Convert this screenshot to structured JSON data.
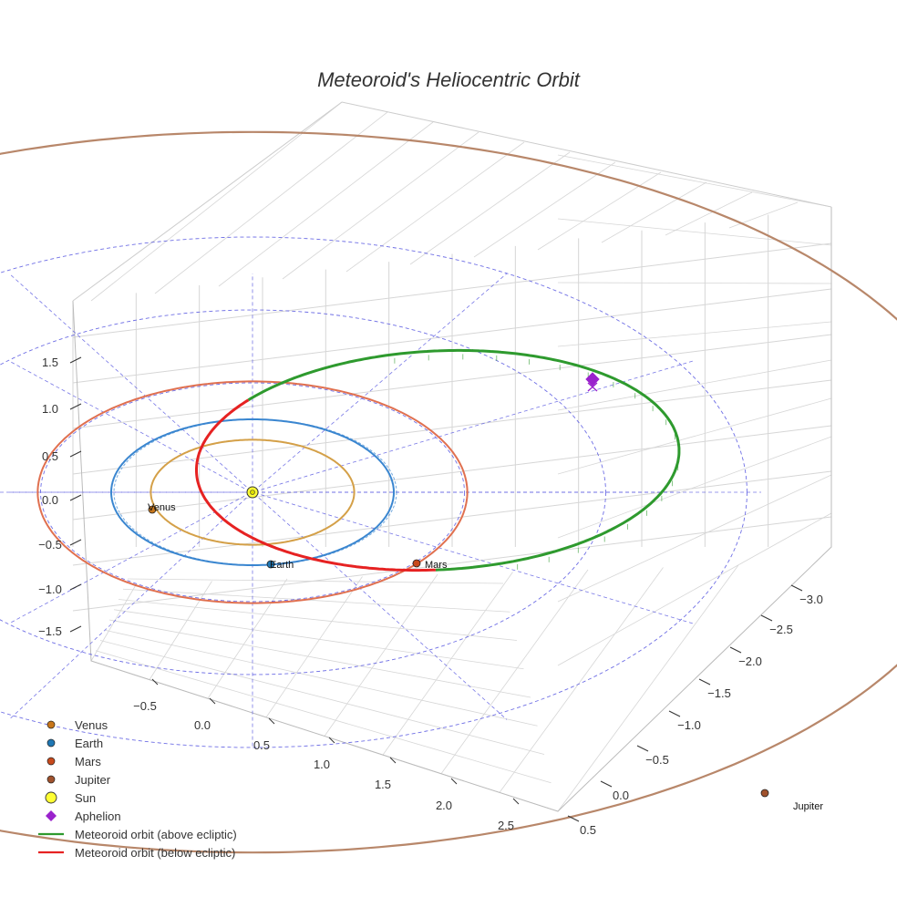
{
  "chart_data": {
    "type": "line",
    "title": "Meteoroid's Heliocentric Orbit",
    "axes": {
      "z_ticks": [
        "−1.5",
        "−1.0",
        "−0.5",
        "0.0",
        "0.5",
        "1.0",
        "1.5"
      ],
      "x_ticks": [
        "−0.5",
        "0.0",
        "0.5",
        "1.0",
        "1.5",
        "2.0",
        "2.5"
      ],
      "y_ticks": [
        "−3.0",
        "−2.5",
        "−2.0",
        "−1.5",
        "−1.0",
        "−0.5",
        "0.0",
        "0.5"
      ],
      "grid": true,
      "ecliptic_reference_rings_au": [
        1.5,
        2.5,
        3.5
      ]
    },
    "planets": [
      {
        "name": "Venus",
        "orbit_radius_au": 0.72,
        "color": "#d4a048",
        "marker_color": "#c8761b",
        "label": "Venus"
      },
      {
        "name": "Earth",
        "orbit_radius_au": 1.0,
        "color": "#3a86d0",
        "marker_color": "#1f77b4",
        "label": "Earth"
      },
      {
        "name": "Mars",
        "orbit_radius_au": 1.52,
        "color": "#e07050",
        "marker_color": "#c84a1c",
        "label": "Mars"
      },
      {
        "name": "Jupiter",
        "orbit_radius_au": 5.2,
        "color": "#b8876a",
        "marker_color": "#a0522d",
        "label": "Jupiter"
      }
    ],
    "sun": {
      "name": "Sun",
      "color": "#ffff33"
    },
    "meteoroid_orbit": {
      "perihelion_au": 0.72,
      "aphelion_au": 2.9,
      "above_ecliptic_color": "#2e9a2e",
      "below_ecliptic_color": "#e62222"
    },
    "aphelion": {
      "name": "Aphelion",
      "color": "#9a22cc"
    },
    "legend": {
      "position": "bottom-left",
      "entries": [
        {
          "label": "Venus",
          "kind": "dot",
          "color": "#c8761b"
        },
        {
          "label": "Earth",
          "kind": "dot",
          "color": "#1f77b4"
        },
        {
          "label": "Mars",
          "kind": "dot",
          "color": "#c84a1c"
        },
        {
          "label": "Jupiter",
          "kind": "dot",
          "color": "#a0522d"
        },
        {
          "label": "Sun",
          "kind": "sun",
          "color": "#ffff33"
        },
        {
          "label": "Aphelion",
          "kind": "diamond",
          "color": "#9a22cc"
        },
        {
          "label": "Meteoroid orbit (above ecliptic)",
          "kind": "line",
          "color": "#2e9a2e"
        },
        {
          "label": "Meteoroid orbit (below ecliptic)",
          "kind": "line",
          "color": "#e62222"
        }
      ]
    }
  }
}
